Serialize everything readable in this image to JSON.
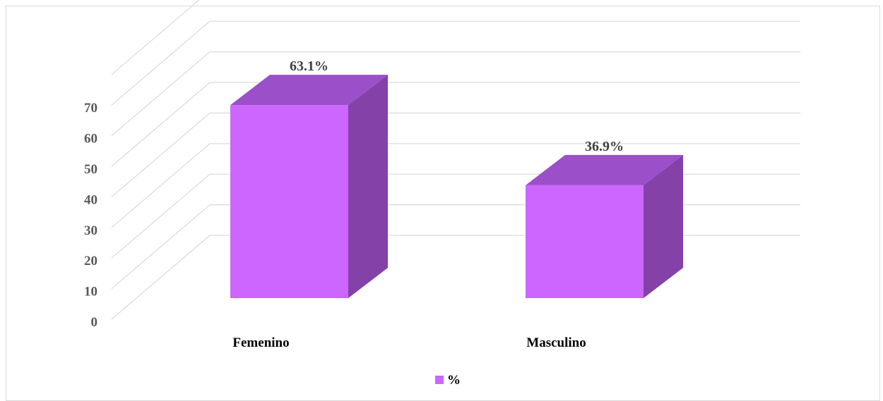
{
  "chart_data": {
    "type": "bar",
    "three_d": true,
    "categories": [
      "Femenino",
      "Masculino"
    ],
    "series": [
      {
        "name": "%",
        "values": [
          63.1,
          36.9
        ],
        "labels": [
          "63.1%",
          "36.9%"
        ]
      }
    ],
    "y_ticks": [
      "0",
      "10",
      "20",
      "30",
      "40",
      "50",
      "60",
      "70"
    ],
    "ylim": [
      0,
      80
    ],
    "grid": true,
    "legend": "bottom",
    "colors": {
      "front": "#cc66ff",
      "top": "#9b4fc8",
      "side": "#8441a8",
      "grid": "#d9d9d9",
      "axis_text": "#595959"
    }
  }
}
